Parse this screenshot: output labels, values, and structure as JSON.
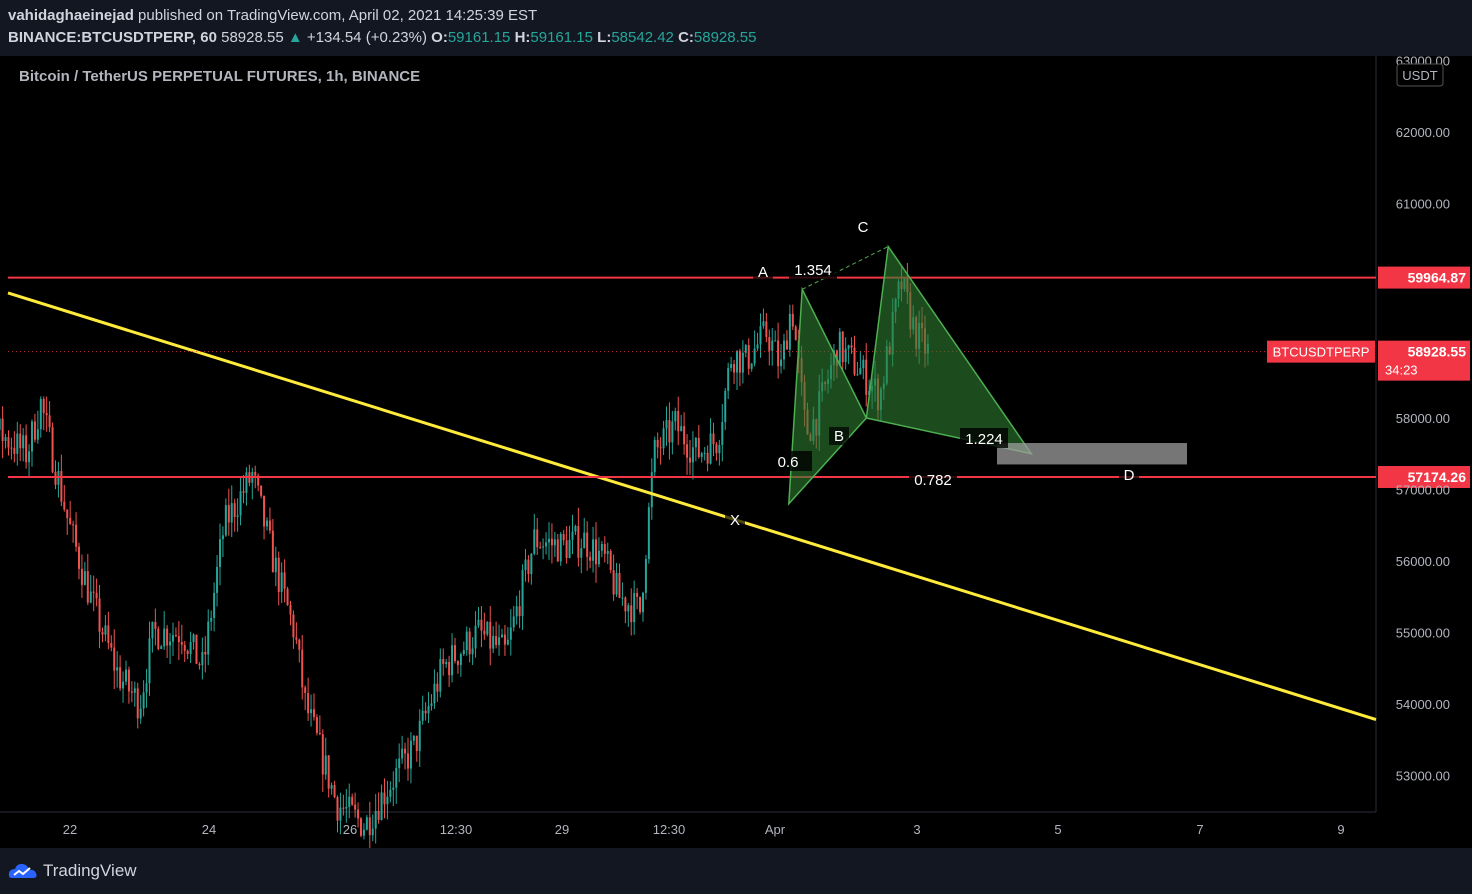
{
  "header": {
    "author": "vahidaghaeinejad",
    "published": "published on TradingView.com, April 02, 2021 14:25:39 EST",
    "symbol": "BINANCE:BTCUSDTPERP, 60",
    "price": "58928.55",
    "change": "+134.54 (+0.23%)",
    "o_label": "O:",
    "o": "59161.15",
    "h_label": "H:",
    "h": "59161.15",
    "l_label": "L:",
    "l": "58542.42",
    "c_label": "C:",
    "c": "58928.55"
  },
  "footer": {
    "brand": "TradingView"
  },
  "chart_data": {
    "type": "candlestick",
    "title": "Bitcoin / TetherUS PERPETUAL FUTURES, 1h, BINANCE",
    "currency": "USDT",
    "y_ticks": [
      53000,
      54000,
      55000,
      56000,
      57000,
      58000,
      61000,
      62000,
      63000
    ],
    "ylim": [
      52500,
      63100
    ],
    "x_ticks": [
      "22",
      "24",
      "26",
      "12:30",
      "29",
      "12:30",
      "Apr",
      "3",
      "5",
      "7",
      "9"
    ],
    "horizontal_levels": [
      {
        "value": 59964.87,
        "label": "59964.87",
        "color": "#f23645"
      },
      {
        "value": 57174.26,
        "label": "57174.26",
        "color": "#f23645"
      }
    ],
    "last_price": {
      "symbol": "BTCUSDTPERP",
      "value": 58928.55,
      "label": "58928.55",
      "countdown": "34:23",
      "color": "#f23645"
    },
    "trendline": {
      "from": [
        "Mar 21",
        59750
      ],
      "to": [
        "Apr 9",
        53780
      ],
      "color": "#ffeb3b"
    },
    "harmonic_pattern": {
      "points": [
        {
          "name": "X",
          "value": 56800
        },
        {
          "name": "A",
          "value": 59800
        },
        {
          "name": "B",
          "value": 58000
        },
        {
          "name": "C",
          "value": 60400
        },
        {
          "name": "D",
          "value": 57500
        }
      ],
      "ratios": [
        "1.354",
        "0.6",
        "1.224",
        "0.782"
      ],
      "color": "#2e7d32"
    },
    "target_zone": {
      "low": 57350,
      "high": 57650
    },
    "series_summary": {
      "open": 59161.15,
      "high": 59161.15,
      "low": 58542.42,
      "close": 58928.55
    }
  }
}
